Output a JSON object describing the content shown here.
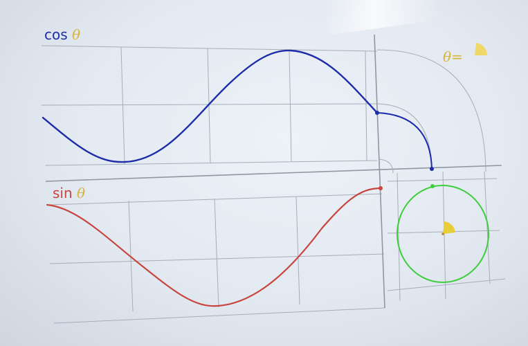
{
  "labels": {
    "cos": {
      "fn": "cos",
      "var": "θ"
    },
    "sin": {
      "fn": "sin",
      "var": "θ"
    },
    "theta": {
      "var": "θ",
      "eq": "="
    }
  },
  "colors": {
    "cos_curve": "#1d2ca8",
    "sin_curve": "#c8453e",
    "circle": "#3fcc3f",
    "angle_wedge": "#e8cc3a",
    "theta_label": "#d9b43a",
    "grid": "#a6adb8"
  },
  "icons": [
    "angle-wedge-icon"
  ]
}
